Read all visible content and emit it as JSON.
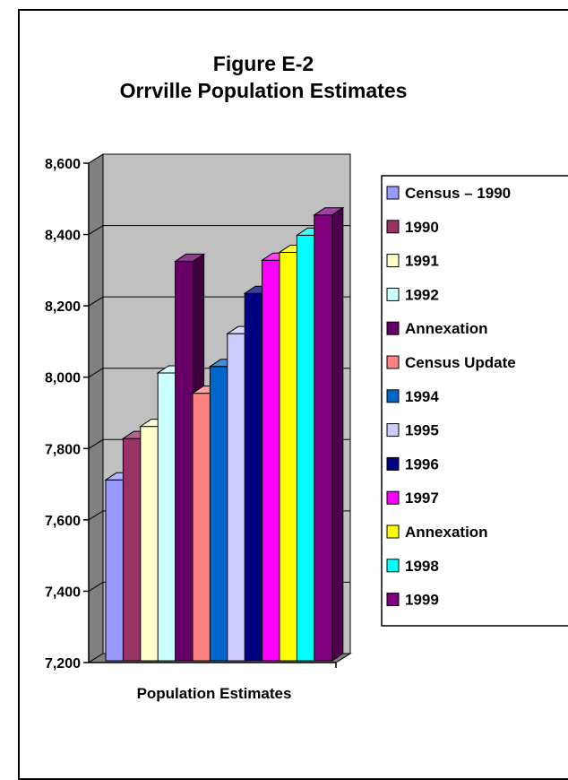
{
  "chart_data": {
    "type": "bar",
    "title_line1": "Figure E-2",
    "title_line2": "Orrville Population Estimates",
    "xlabel": "Population Estimates",
    "ylabel": "",
    "ylim": [
      7200,
      8600
    ],
    "yticks": [
      "8,600",
      "8,400",
      "8,200",
      "8,000",
      "7,800",
      "7,600",
      "7,400",
      "7,200"
    ],
    "categories": [
      "Population Estimates"
    ],
    "series": [
      {
        "name": "Census – 1990",
        "value": 7712,
        "color": "#9999ff"
      },
      {
        "name": "1990",
        "value": 7828,
        "color": "#993366"
      },
      {
        "name": "1991",
        "value": 7862,
        "color": "#ffffcc"
      },
      {
        "name": "1992",
        "value": 8012,
        "color": "#ccffff"
      },
      {
        "name": "Annexation",
        "value": 8325,
        "color": "#660066"
      },
      {
        "name": "Census Update",
        "value": 7955,
        "color": "#ff8080"
      },
      {
        "name": "1994",
        "value": 8030,
        "color": "#0066cc"
      },
      {
        "name": "1995",
        "value": 8122,
        "color": "#ccccff"
      },
      {
        "name": "1996",
        "value": 8235,
        "color": "#000080"
      },
      {
        "name": "1997",
        "value": 8328,
        "color": "#ff00ff"
      },
      {
        "name": "Annexation",
        "value": 8350,
        "color": "#ffff00"
      },
      {
        "name": "1998",
        "value": 8398,
        "color": "#00ffff"
      },
      {
        "name": "1999",
        "value": 8455,
        "color": "#800080"
      }
    ],
    "grid": true,
    "legend_position": "right"
  }
}
